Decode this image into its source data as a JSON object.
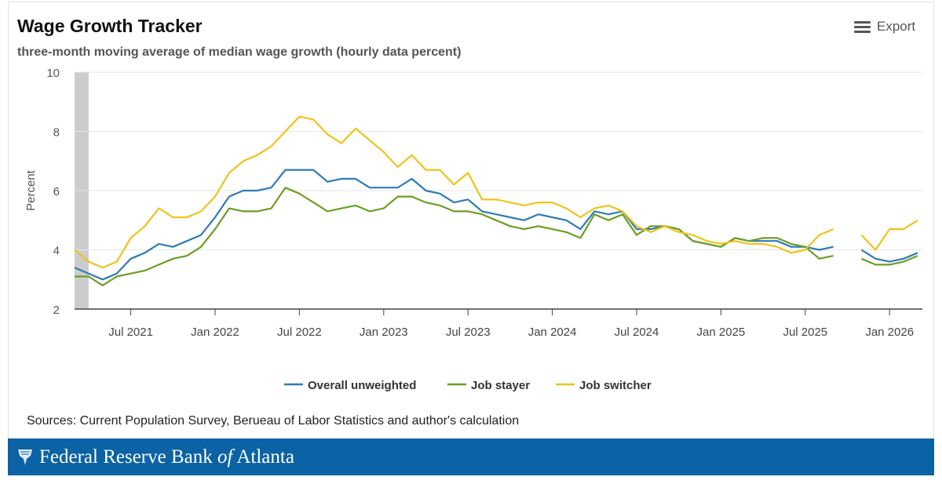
{
  "header": {
    "title": "Wage Growth Tracker",
    "subtitle": "three-month moving average of median wage growth (hourly data percent)",
    "export_label": "Export",
    "export_icon": "hamburger-menu-icon"
  },
  "footer": {
    "source": "Sources: Current Population Survey, Berueau of Labor Statistics and author's calculation",
    "logo_text_1": "Federal Reserve Bank ",
    "logo_text_of": "of",
    "logo_text_2": " Atlanta",
    "brand_color": "#0b62a4"
  },
  "chart_data": {
    "type": "line",
    "title": "Wage Growth Tracker",
    "subtitle": "three-month moving average of median wage growth (hourly data percent)",
    "ylabel": "Percent",
    "xlabel": "",
    "ylim": [
      2,
      10
    ],
    "yticks": [
      "2",
      "4",
      "6",
      "8",
      "10"
    ],
    "grid": true,
    "legend": "bottom",
    "x_start": "2021-03",
    "x_end": "2026-03",
    "frequency": "monthly",
    "xtick_labels": [
      "Jul 2021",
      "Jan 2022",
      "Jul 2022",
      "Jan 2023",
      "Jul 2023",
      "Jan 2024",
      "Jul 2024",
      "Jan 2025",
      "Jul 2025",
      "Jan 2026"
    ],
    "xtick_months": [
      "2021-07",
      "2022-01",
      "2022-07",
      "2023-01",
      "2023-07",
      "2024-01",
      "2024-07",
      "2025-01",
      "2025-07",
      "2026-01"
    ],
    "shaded_band": {
      "from": "2021-03",
      "to": "2021-04",
      "color": "#cccccc"
    },
    "series": [
      {
        "name": "Overall unweighted",
        "color": "#2f7bb6",
        "values": [
          3.4,
          3.2,
          3.0,
          3.2,
          3.7,
          3.9,
          4.2,
          4.1,
          4.3,
          4.5,
          5.1,
          5.8,
          6.0,
          6.0,
          6.1,
          6.7,
          6.7,
          6.7,
          6.3,
          6.4,
          6.4,
          6.1,
          6.1,
          6.1,
          6.4,
          6.0,
          5.9,
          5.6,
          5.7,
          5.3,
          5.2,
          5.1,
          5.0,
          5.2,
          5.1,
          5.0,
          4.7,
          5.3,
          5.2,
          5.3,
          4.7,
          4.7,
          4.8,
          4.7,
          4.3,
          4.2,
          4.1,
          4.4,
          4.3,
          4.3,
          4.3,
          4.1,
          4.1,
          4.0,
          4.1,
          null,
          4.0,
          3.7,
          3.6,
          3.7,
          3.9
        ]
      },
      {
        "name": "Job stayer",
        "color": "#6b9e23",
        "values": [
          3.1,
          3.1,
          2.8,
          3.1,
          3.2,
          3.3,
          3.5,
          3.7,
          3.8,
          4.1,
          4.7,
          5.4,
          5.3,
          5.3,
          5.4,
          6.1,
          5.9,
          5.6,
          5.3,
          5.4,
          5.5,
          5.3,
          5.4,
          5.8,
          5.8,
          5.6,
          5.5,
          5.3,
          5.3,
          5.2,
          5.0,
          4.8,
          4.7,
          4.8,
          4.7,
          4.6,
          4.4,
          5.2,
          5.0,
          5.2,
          4.5,
          4.8,
          4.8,
          4.7,
          4.3,
          4.2,
          4.1,
          4.4,
          4.3,
          4.4,
          4.4,
          4.2,
          4.1,
          3.7,
          3.8,
          null,
          3.7,
          3.5,
          3.5,
          3.6,
          3.8
        ]
      },
      {
        "name": "Job switcher",
        "color": "#f0c21b",
        "values": [
          4.0,
          3.6,
          3.4,
          3.6,
          4.4,
          4.8,
          5.4,
          5.1,
          5.1,
          5.3,
          5.8,
          6.6,
          7.0,
          7.2,
          7.5,
          8.0,
          8.5,
          8.4,
          7.9,
          7.6,
          8.1,
          7.7,
          7.3,
          6.8,
          7.2,
          6.7,
          6.7,
          6.2,
          6.6,
          5.7,
          5.7,
          5.6,
          5.5,
          5.6,
          5.6,
          5.4,
          5.1,
          5.4,
          5.5,
          5.3,
          4.8,
          4.6,
          4.8,
          4.6,
          4.5,
          4.3,
          4.2,
          4.3,
          4.2,
          4.2,
          4.1,
          3.9,
          4.0,
          4.5,
          4.7,
          null,
          4.5,
          4.0,
          4.7,
          4.7,
          5.0
        ]
      }
    ]
  }
}
